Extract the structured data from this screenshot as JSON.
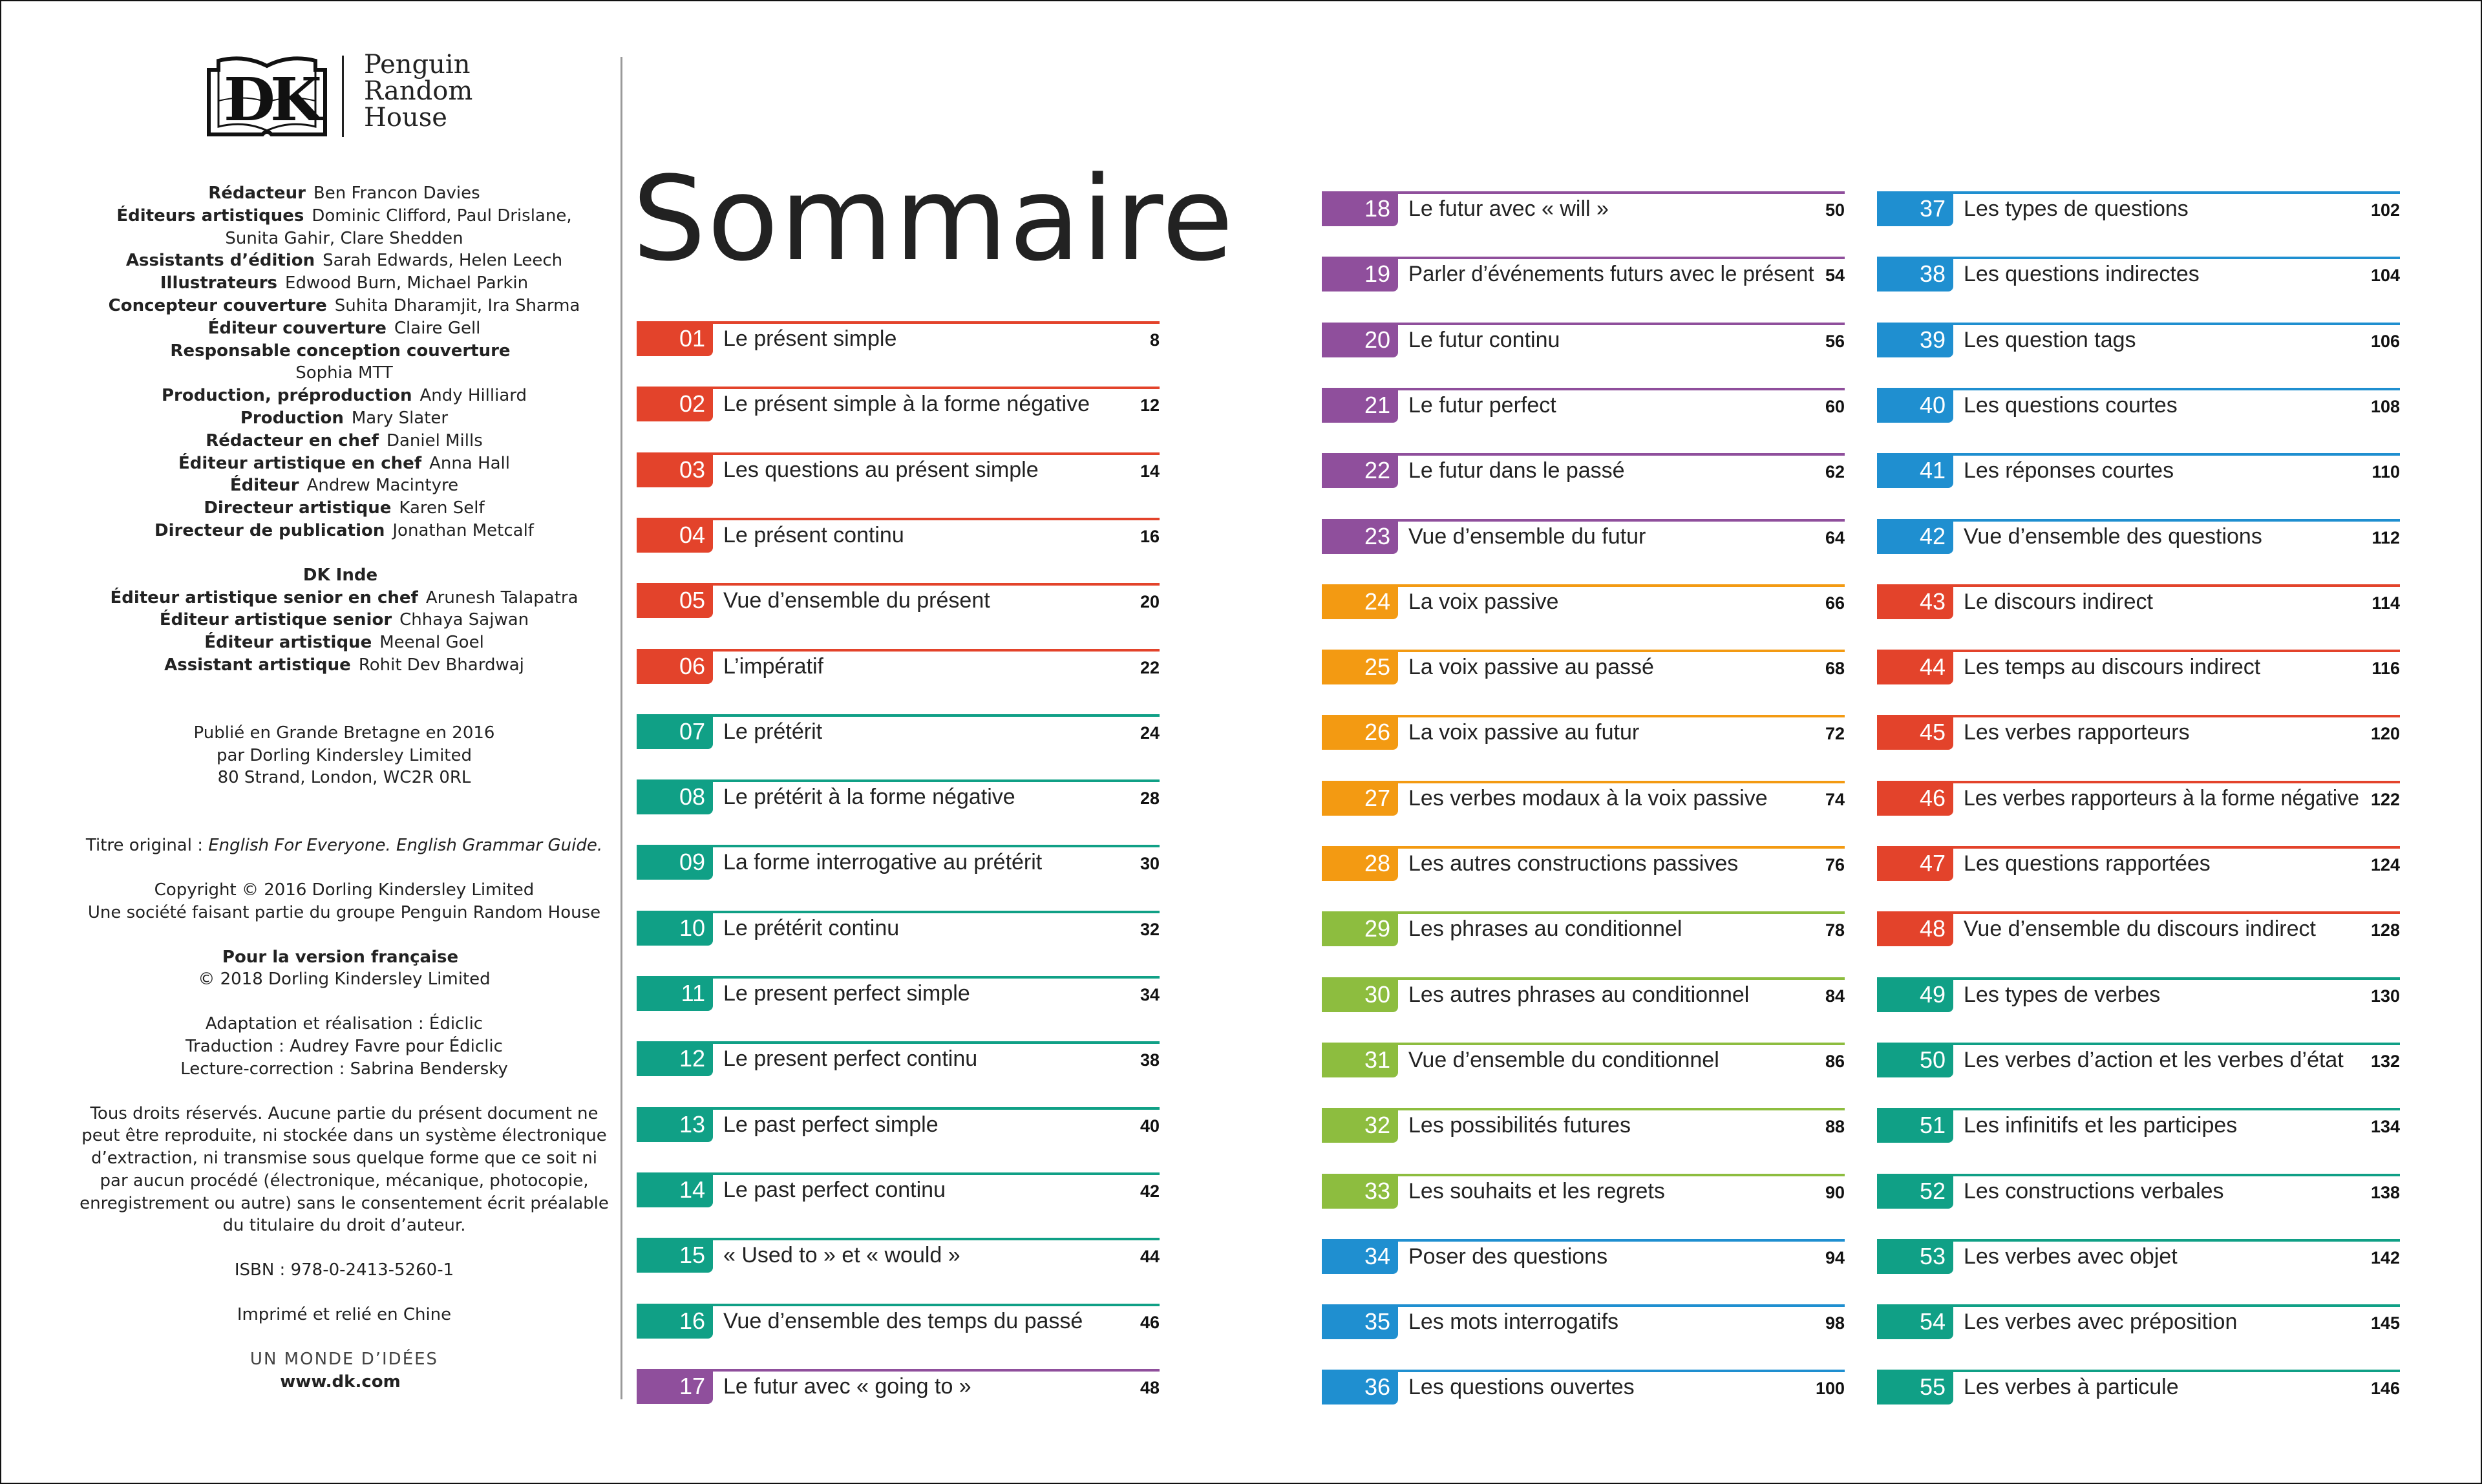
{
  "logo": {
    "brand": "DK",
    "publisher": [
      "Penguin",
      "Random",
      "House"
    ]
  },
  "credits": [
    {
      "role": "Rédacteur",
      "name": "Ben Francon Davies"
    },
    {
      "role": "Éditeurs artistiques",
      "name": "Dominic Clifford, Paul Drislane,"
    },
    {
      "role": "",
      "name": "Sunita Gahir, Clare Shedden"
    },
    {
      "role": "Assistants d’édition",
      "name": "Sarah Edwards, Helen Leech"
    },
    {
      "role": "Illustrateurs",
      "name": "Edwood Burn, Michael Parkin"
    },
    {
      "role": "Concepteur couverture",
      "name": "Suhita Dharamjit, Ira Sharma"
    },
    {
      "role": "Éditeur couverture",
      "name": "Claire Gell"
    },
    {
      "role": "Responsable conception couverture",
      "name": ""
    },
    {
      "role": "",
      "name": "Sophia MTT"
    },
    {
      "role": "Production, préproduction",
      "name": "Andy Hilliard"
    },
    {
      "role": "Production",
      "name": "Mary Slater"
    },
    {
      "role": "Rédacteur en chef",
      "name": "Daniel Mills"
    },
    {
      "role": "Éditeur artistique en chef",
      "name": "Anna Hall"
    },
    {
      "role": "Éditeur",
      "name": "Andrew Macintyre"
    },
    {
      "role": "Directeur artistique",
      "name": "Karen Self"
    },
    {
      "role": "Directeur de publication",
      "name": "Jonathan Metcalf"
    }
  ],
  "dk_india": {
    "heading": "DK Inde",
    "credits": [
      {
        "role": "Éditeur artistique senior en chef",
        "name": "Arunesh Talapatra"
      },
      {
        "role": "Éditeur artistique senior",
        "name": "Chhaya Sajwan"
      },
      {
        "role": "Éditeur artistique",
        "name": "Meenal Goel"
      },
      {
        "role": "Assistant artistique",
        "name": "Rohit Dev Bhardwaj"
      }
    ]
  },
  "imprint": {
    "published": [
      "Publié en Grande Bretagne en 2016",
      "par Dorling Kindersley Limited",
      "80 Strand, London, WC2R 0RL"
    ],
    "original_title_label": "Titre original : ",
    "original_title": "English For Everyone. English Grammar Guide.",
    "copyright": [
      "Copyright © 2016 Dorling Kindersley Limited",
      "Une société faisant partie du groupe Penguin Random House"
    ],
    "french_heading": "Pour la version française",
    "french_copyright": "© 2018 Dorling Kindersley Limited",
    "adaptation": [
      "Adaptation et réalisation : Édiclic",
      "Traduction : Audrey Favre pour Édiclic",
      "Lecture-correction : Sabrina Bendersky"
    ],
    "rights": "Tous droits réservés. Aucune partie du présent document ne peut être reproduite, ni stockée dans un système électronique d’extraction, ni transmise sous quelque forme que ce soit ni par aucun procédé (électronique, mécanique, photocopie, enregistrement ou autre) sans le consentement écrit préalable du titulaire du droit d’auteur.",
    "isbn": "ISBN : 978-0-2413-5260-1",
    "printed": "Imprimé et relié en Chine",
    "tagline": "UN MONDE D’IDÉES",
    "website": "www.dk.com"
  },
  "title": "Sommaire",
  "colors": {
    "red": "#e3432b",
    "teal": "#10a086",
    "purple": "#8f4f9c",
    "orange": "#f39a12",
    "green": "#8dbd3f",
    "blue": "#1f8fd0"
  },
  "entries": [
    {
      "num": "01",
      "label": "Le présent simple",
      "page": "8",
      "color": "red"
    },
    {
      "num": "02",
      "label": "Le présent simple à la forme négative",
      "page": "12",
      "color": "red"
    },
    {
      "num": "03",
      "label": "Les questions au présent simple",
      "page": "14",
      "color": "red"
    },
    {
      "num": "04",
      "label": "Le présent continu",
      "page": "16",
      "color": "red"
    },
    {
      "num": "05",
      "label": "Vue d’ensemble du présent",
      "page": "20",
      "color": "red"
    },
    {
      "num": "06",
      "label": "L’impératif",
      "page": "22",
      "color": "red"
    },
    {
      "num": "07",
      "label": "Le prétérit",
      "page": "24",
      "color": "teal"
    },
    {
      "num": "08",
      "label": "Le prétérit à la forme négative",
      "page": "28",
      "color": "teal"
    },
    {
      "num": "09",
      "label": "La forme interrogative au prétérit",
      "page": "30",
      "color": "teal"
    },
    {
      "num": "10",
      "label": "Le prétérit continu",
      "page": "32",
      "color": "teal"
    },
    {
      "num": "11",
      "label": "Le present perfect simple",
      "page": "34",
      "color": "teal"
    },
    {
      "num": "12",
      "label": "Le present perfect continu",
      "page": "38",
      "color": "teal"
    },
    {
      "num": "13",
      "label": "Le past perfect simple",
      "page": "40",
      "color": "teal"
    },
    {
      "num": "14",
      "label": "Le past perfect continu",
      "page": "42",
      "color": "teal"
    },
    {
      "num": "15",
      "label": "« Used to » et « would »",
      "page": "44",
      "color": "teal"
    },
    {
      "num": "16",
      "label": "Vue d’ensemble des temps du passé",
      "page": "46",
      "color": "teal"
    },
    {
      "num": "17",
      "label": "Le futur avec « going to »",
      "page": "48",
      "color": "purple"
    },
    {
      "num": "18",
      "label": "Le futur avec « will »",
      "page": "50",
      "color": "purple"
    },
    {
      "num": "19",
      "label": "Parler d’événements futurs avec le présent",
      "page": "54",
      "color": "purple"
    },
    {
      "num": "20",
      "label": "Le futur continu",
      "page": "56",
      "color": "purple"
    },
    {
      "num": "21",
      "label": "Le futur perfect",
      "page": "60",
      "color": "purple"
    },
    {
      "num": "22",
      "label": "Le futur dans le passé",
      "page": "62",
      "color": "purple"
    },
    {
      "num": "23",
      "label": "Vue d’ensemble du futur",
      "page": "64",
      "color": "purple"
    },
    {
      "num": "24",
      "label": "La voix passive",
      "page": "66",
      "color": "orange"
    },
    {
      "num": "25",
      "label": "La voix passive au passé",
      "page": "68",
      "color": "orange"
    },
    {
      "num": "26",
      "label": "La voix passive au futur",
      "page": "72",
      "color": "orange"
    },
    {
      "num": "27",
      "label": "Les verbes modaux à la voix passive",
      "page": "74",
      "color": "orange"
    },
    {
      "num": "28",
      "label": "Les autres constructions passives",
      "page": "76",
      "color": "orange"
    },
    {
      "num": "29",
      "label": "Les phrases au conditionnel",
      "page": "78",
      "color": "green"
    },
    {
      "num": "30",
      "label": "Les autres phrases au conditionnel",
      "page": "84",
      "color": "green"
    },
    {
      "num": "31",
      "label": "Vue d’ensemble du conditionnel",
      "page": "86",
      "color": "green"
    },
    {
      "num": "32",
      "label": "Les possibilités futures",
      "page": "88",
      "color": "green"
    },
    {
      "num": "33",
      "label": "Les souhaits et les regrets",
      "page": "90",
      "color": "green"
    },
    {
      "num": "34",
      "label": "Poser des questions",
      "page": "94",
      "color": "blue"
    },
    {
      "num": "35",
      "label": "Les mots interrogatifs",
      "page": "98",
      "color": "blue"
    },
    {
      "num": "36",
      "label": "Les questions ouvertes",
      "page": "100",
      "color": "blue"
    },
    {
      "num": "37",
      "label": "Les types de questions",
      "page": "102",
      "color": "blue"
    },
    {
      "num": "38",
      "label": "Les questions indirectes",
      "page": "104",
      "color": "blue"
    },
    {
      "num": "39",
      "label": "Les question tags",
      "page": "106",
      "color": "blue"
    },
    {
      "num": "40",
      "label": "Les questions courtes",
      "page": "108",
      "color": "blue"
    },
    {
      "num": "41",
      "label": "Les réponses courtes",
      "page": "110",
      "color": "blue"
    },
    {
      "num": "42",
      "label": "Vue d’ensemble des questions",
      "page": "112",
      "color": "blue"
    },
    {
      "num": "43",
      "label": "Le discours indirect",
      "page": "114",
      "color": "red"
    },
    {
      "num": "44",
      "label": "Les temps au discours indirect",
      "page": "116",
      "color": "red"
    },
    {
      "num": "45",
      "label": "Les verbes rapporteurs",
      "page": "120",
      "color": "red"
    },
    {
      "num": "46",
      "label": "Les verbes rapporteurs à la forme négative",
      "page": "122",
      "color": "red"
    },
    {
      "num": "47",
      "label": "Les questions rapportées",
      "page": "124",
      "color": "red"
    },
    {
      "num": "48",
      "label": "Vue d’ensemble du discours indirect",
      "page": "128",
      "color": "red"
    },
    {
      "num": "49",
      "label": "Les types de verbes",
      "page": "130",
      "color": "teal"
    },
    {
      "num": "50",
      "label": "Les verbes d’action et les verbes d’état",
      "page": "132",
      "color": "teal"
    },
    {
      "num": "51",
      "label": "Les infinitifs et les participes",
      "page": "134",
      "color": "teal"
    },
    {
      "num": "52",
      "label": "Les constructions verbales",
      "page": "138",
      "color": "teal"
    },
    {
      "num": "53",
      "label": "Les verbes avec objet",
      "page": "142",
      "color": "teal"
    },
    {
      "num": "54",
      "label": "Les verbes avec préposition",
      "page": "145",
      "color": "teal"
    },
    {
      "num": "55",
      "label": "Les verbes à particule",
      "page": "146",
      "color": "teal"
    }
  ]
}
